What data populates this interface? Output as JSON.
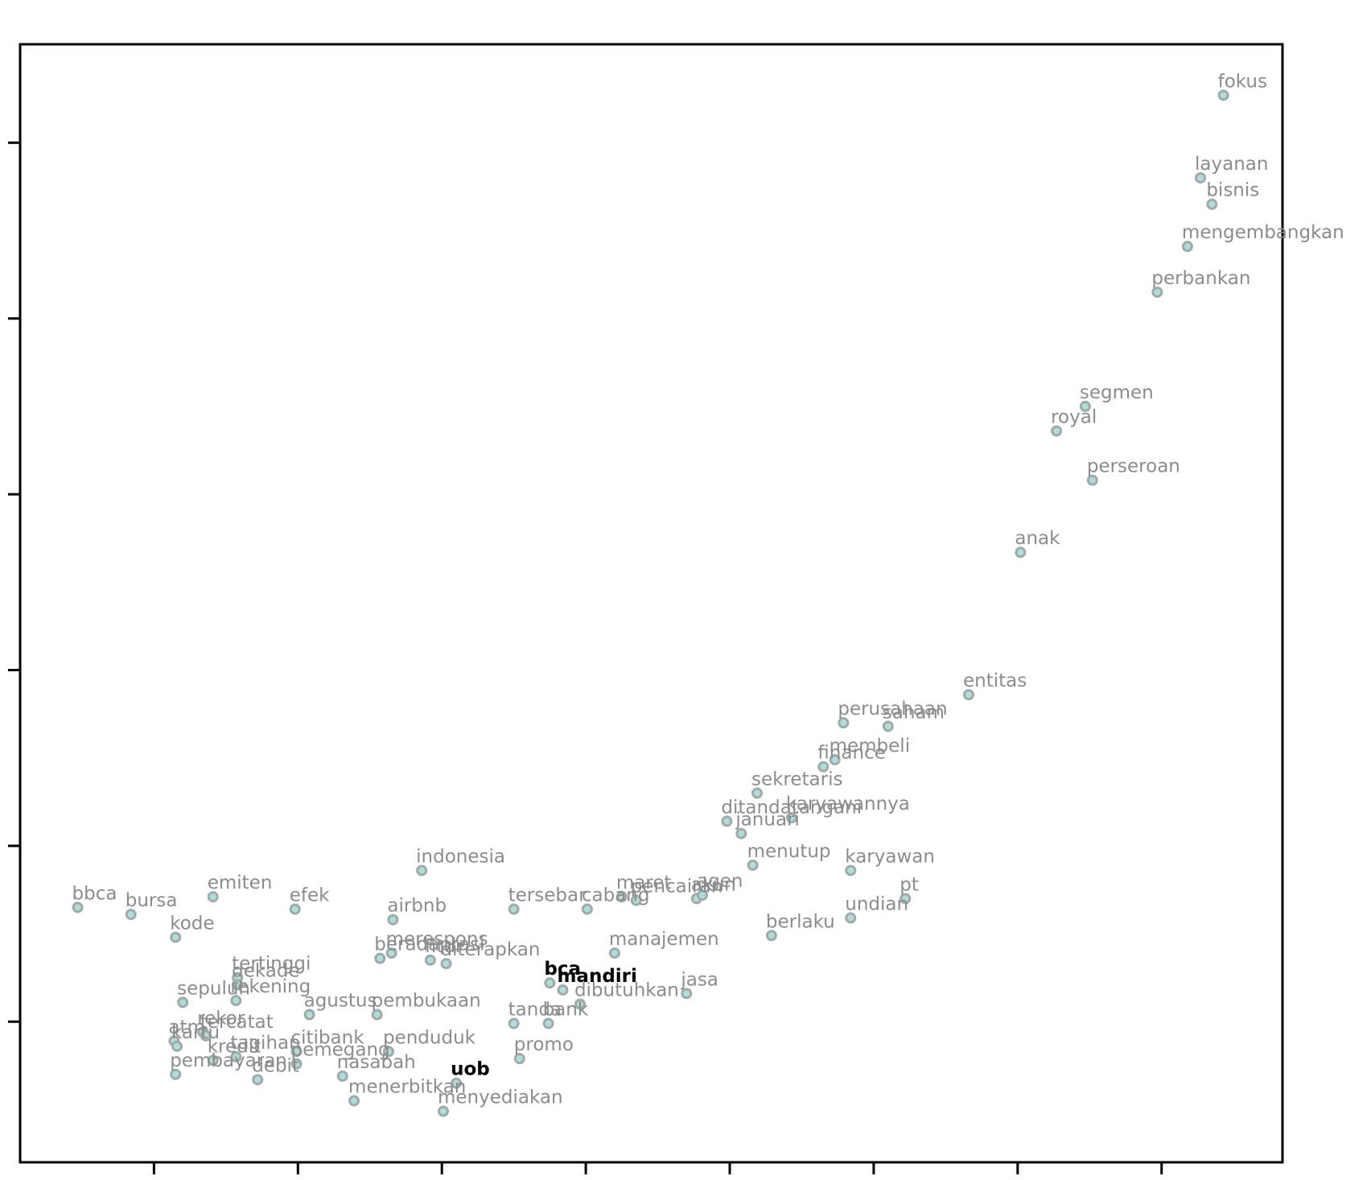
{
  "chart_data": {
    "type": "scatter",
    "labels": [
      "fokus",
      "layanan",
      "bisnis",
      "mengembangkan",
      "perbankan",
      "segmen",
      "royal",
      "perseroan",
      "anak",
      "entitas",
      "perusahaan",
      "saham",
      "membeli",
      "finance",
      "sekretaris",
      "ditandatangani",
      "karyawannya",
      "januari",
      "menutup",
      "karyawan",
      "pt",
      "undian",
      "berlaku",
      "indonesia",
      "bbca",
      "bursa",
      "emiten",
      "efek",
      "kode",
      "airbnb",
      "tersebar",
      "cabang",
      "maret",
      "pencairan",
      "akun",
      "agen",
      "manajemen",
      "merespons",
      "beradaptasi",
      "fitur",
      "diterapkan",
      "bca",
      "mandiri",
      "dibutuhkan",
      "jasa",
      "tanda",
      "bank",
      "promo",
      "tertinggi",
      "dekade",
      "rekening",
      "sepuluh",
      "agustus",
      "pembukaan",
      "rekor",
      "tercatat",
      "atm",
      "kartu",
      "kredit",
      "tagihan",
      "citibank",
      "pemegang",
      "debit",
      "pembayaran",
      "penduduk",
      "nasabah",
      "uob",
      "menerbitkan",
      "menyediakan"
    ],
    "x": [
      8.43,
      8.27,
      8.35,
      8.18,
      7.97,
      7.47,
      7.27,
      7.52,
      7.02,
      6.66,
      5.79,
      6.1,
      5.73,
      5.65,
      5.19,
      4.98,
      5.43,
      5.08,
      5.16,
      5.84,
      6.22,
      5.84,
      5.29,
      2.86,
      0.47,
      0.84,
      1.41,
      1.98,
      1.15,
      2.66,
      3.5,
      4.01,
      4.25,
      4.35,
      4.77,
      4.81,
      4.2,
      2.65,
      2.57,
      2.92,
      3.03,
      3.75,
      3.84,
      3.96,
      4.7,
      3.5,
      3.74,
      3.54,
      1.58,
      1.58,
      1.57,
      1.2,
      2.08,
      2.55,
      1.34,
      1.36,
      1.14,
      1.16,
      1.41,
      1.57,
      1.99,
      1.99,
      1.72,
      1.15,
      2.63,
      2.31,
      3.1,
      2.39,
      3.01
    ],
    "y": [
      6.27,
      5.8,
      5.65,
      5.41,
      5.15,
      4.5,
      4.36,
      4.08,
      3.67,
      2.86,
      2.7,
      2.68,
      2.49,
      2.45,
      2.3,
      2.14,
      2.16,
      2.07,
      1.89,
      1.86,
      1.7,
      1.59,
      1.49,
      1.86,
      1.65,
      1.61,
      1.71,
      1.64,
      1.48,
      1.58,
      1.64,
      1.64,
      1.71,
      1.69,
      1.7,
      1.72,
      1.39,
      1.39,
      1.36,
      1.35,
      1.33,
      1.22,
      1.18,
      1.1,
      1.16,
      0.99,
      0.99,
      0.79,
      1.25,
      1.21,
      1.12,
      1.11,
      1.04,
      1.04,
      0.94,
      0.92,
      0.89,
      0.86,
      0.78,
      0.8,
      0.83,
      0.76,
      0.67,
      0.7,
      0.83,
      0.69,
      0.65,
      0.55,
      0.49
    ],
    "highlighted": [
      41,
      42,
      66
    ],
    "xlim": [
      0.07,
      8.84
    ],
    "ylim": [
      0.2,
      6.56
    ],
    "xticks": [
      1,
      2,
      3,
      4,
      5,
      6,
      7,
      8
    ],
    "yticks": [
      1,
      2,
      3,
      4,
      5,
      6
    ],
    "marker_color": "#a9e0db",
    "marker_edge": "#a3a9a9",
    "label_color": "#8c8c8c",
    "highlight_color": "#000000"
  }
}
